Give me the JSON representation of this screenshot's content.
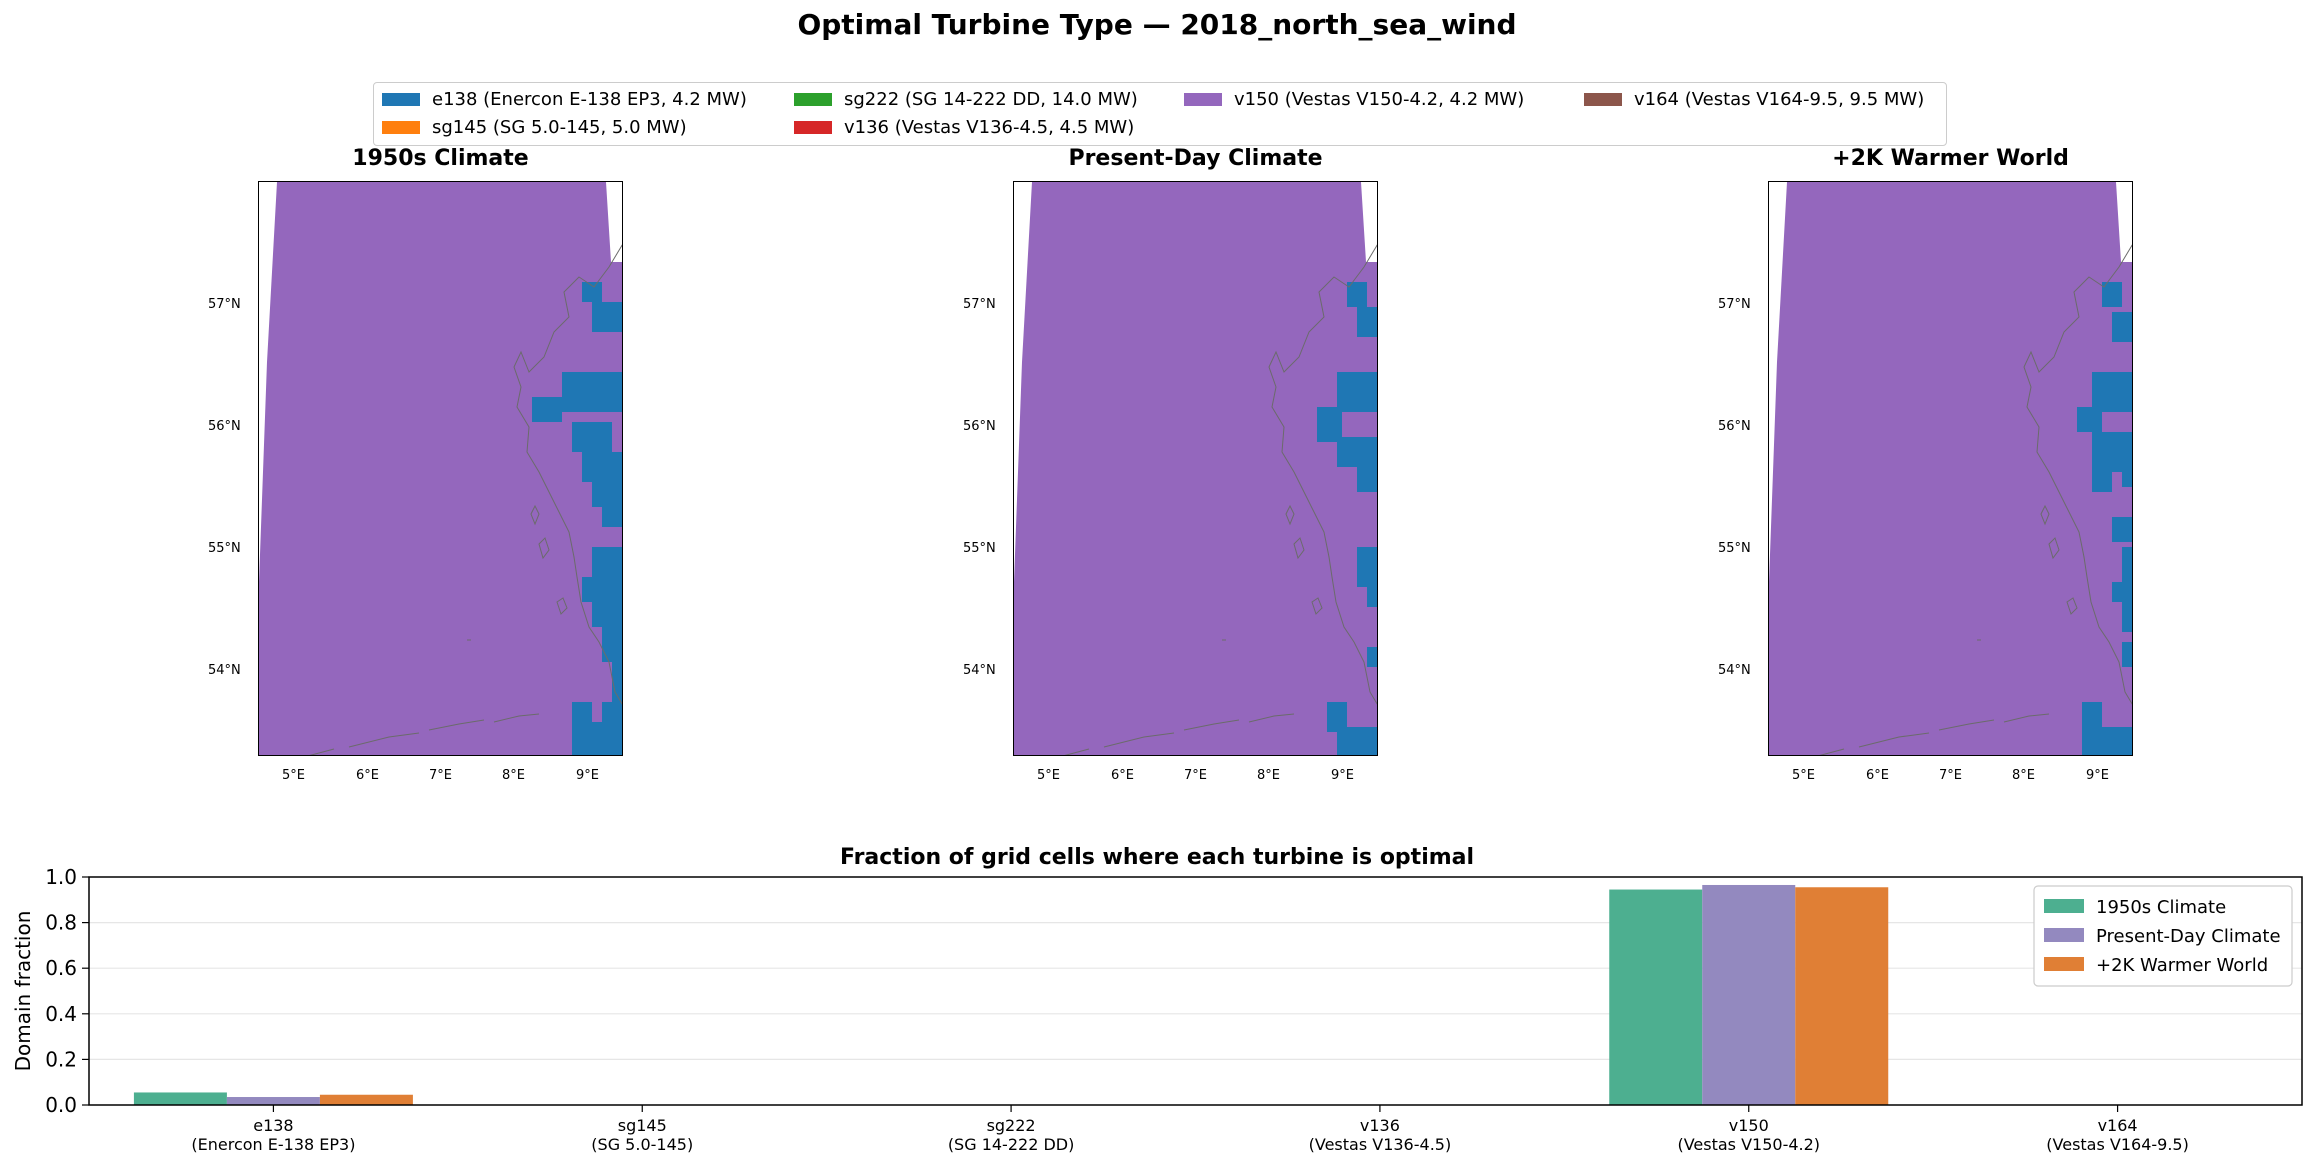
{
  "suptitle": "Optimal Turbine Type — 2018_north_sea_wind",
  "legend_top": [
    {
      "label": "e138 (Enercon E-138 EP3, 4.2 MW)",
      "color": "#1f77b4"
    },
    {
      "label": "sg145 (SG 5.0-145, 5.0 MW)",
      "color": "#ff7f0e"
    },
    {
      "label": "sg222 (SG 14-222 DD, 14.0 MW)",
      "color": "#2ca02c"
    },
    {
      "label": "v136 (Vestas V136-4.5, 4.5 MW)",
      "color": "#d62728"
    },
    {
      "label": "v150 (Vestas V150-4.2, 4.2 MW)",
      "color": "#9467bd"
    },
    {
      "label": "v164 (Vestas V164-9.5, 9.5 MW)",
      "color": "#8c564b"
    }
  ],
  "maps": {
    "lat_ticks": [
      "57°N",
      "56°N",
      "55°N",
      "54°N"
    ],
    "lon_ticks": [
      "5°E",
      "6°E",
      "7°E",
      "8°E",
      "9°E"
    ],
    "panels": [
      {
        "title": "1950s Climate"
      },
      {
        "title": "Present-Day Climate"
      },
      {
        "title": "+2K Warmer World"
      }
    ],
    "background_color": "#9467bd",
    "highlight_color": "#1f77b4",
    "coast_color": "#6b6b6b"
  },
  "chart_data": {
    "type": "bar",
    "title": "Fraction of grid cells where each turbine is optimal",
    "ylabel": "Domain fraction",
    "xlabel": "",
    "ylim": [
      0,
      1.0
    ],
    "yticks": [
      "0.0",
      "0.2",
      "0.4",
      "0.6",
      "0.8",
      "1.0"
    ],
    "grid": "y",
    "legend_position": "top-right",
    "categories": [
      {
        "line1": "e138",
        "line2": "(Enercon E-138 EP3)"
      },
      {
        "line1": "sg145",
        "line2": "(SG 5.0-145)"
      },
      {
        "line1": "sg222",
        "line2": "(SG 14-222 DD)"
      },
      {
        "line1": "v136",
        "line2": "(Vestas V136-4.5)"
      },
      {
        "line1": "v150",
        "line2": "(Vestas V150-4.2)"
      },
      {
        "line1": "v164",
        "line2": "(Vestas V164-9.5)"
      }
    ],
    "series": [
      {
        "name": "1950s Climate",
        "color": "#4daf90",
        "values": [
          0.055,
          0,
          0,
          0,
          0.945,
          0
        ]
      },
      {
        "name": "Present-Day Climate",
        "color": "#9389bf",
        "values": [
          0.035,
          0,
          0,
          0,
          0.965,
          0
        ]
      },
      {
        "name": "+2K Warmer World",
        "color": "#e07f35",
        "values": [
          0.045,
          0,
          0,
          0,
          0.955,
          0
        ]
      }
    ]
  }
}
